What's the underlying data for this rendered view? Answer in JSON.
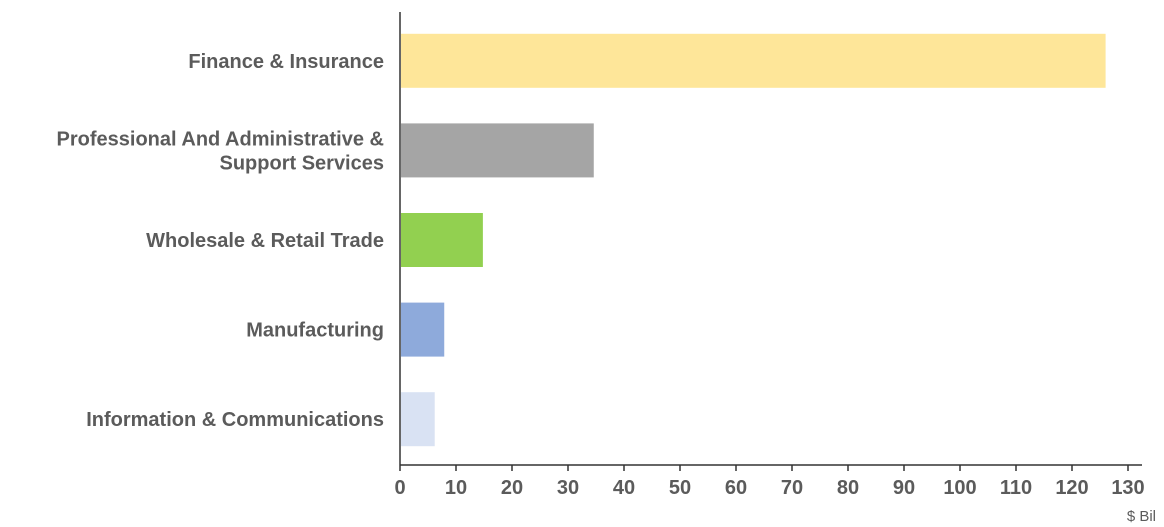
{
  "chart_data": {
    "type": "bar",
    "orientation": "horizontal",
    "categories": [
      "Finance & Insurance",
      "Professional And Administrative & Support Services",
      "Wholesale & Retail Trade",
      "Manufacturing",
      "Information & Communications"
    ],
    "values": [
      126,
      34.6,
      14.8,
      7.9,
      6.2
    ],
    "colors": [
      "#fee699",
      "#a5a5a5",
      "#92d050",
      "#8eaadb",
      "#d9e2f3"
    ],
    "xlim": [
      0,
      130
    ],
    "xticks": [
      "0",
      "10",
      "20",
      "30",
      "40",
      "50",
      "60",
      "70",
      "80",
      "90",
      "100",
      "110",
      "120",
      "130"
    ],
    "xunit": "$ Bil",
    "grid": false,
    "legend": "none"
  }
}
